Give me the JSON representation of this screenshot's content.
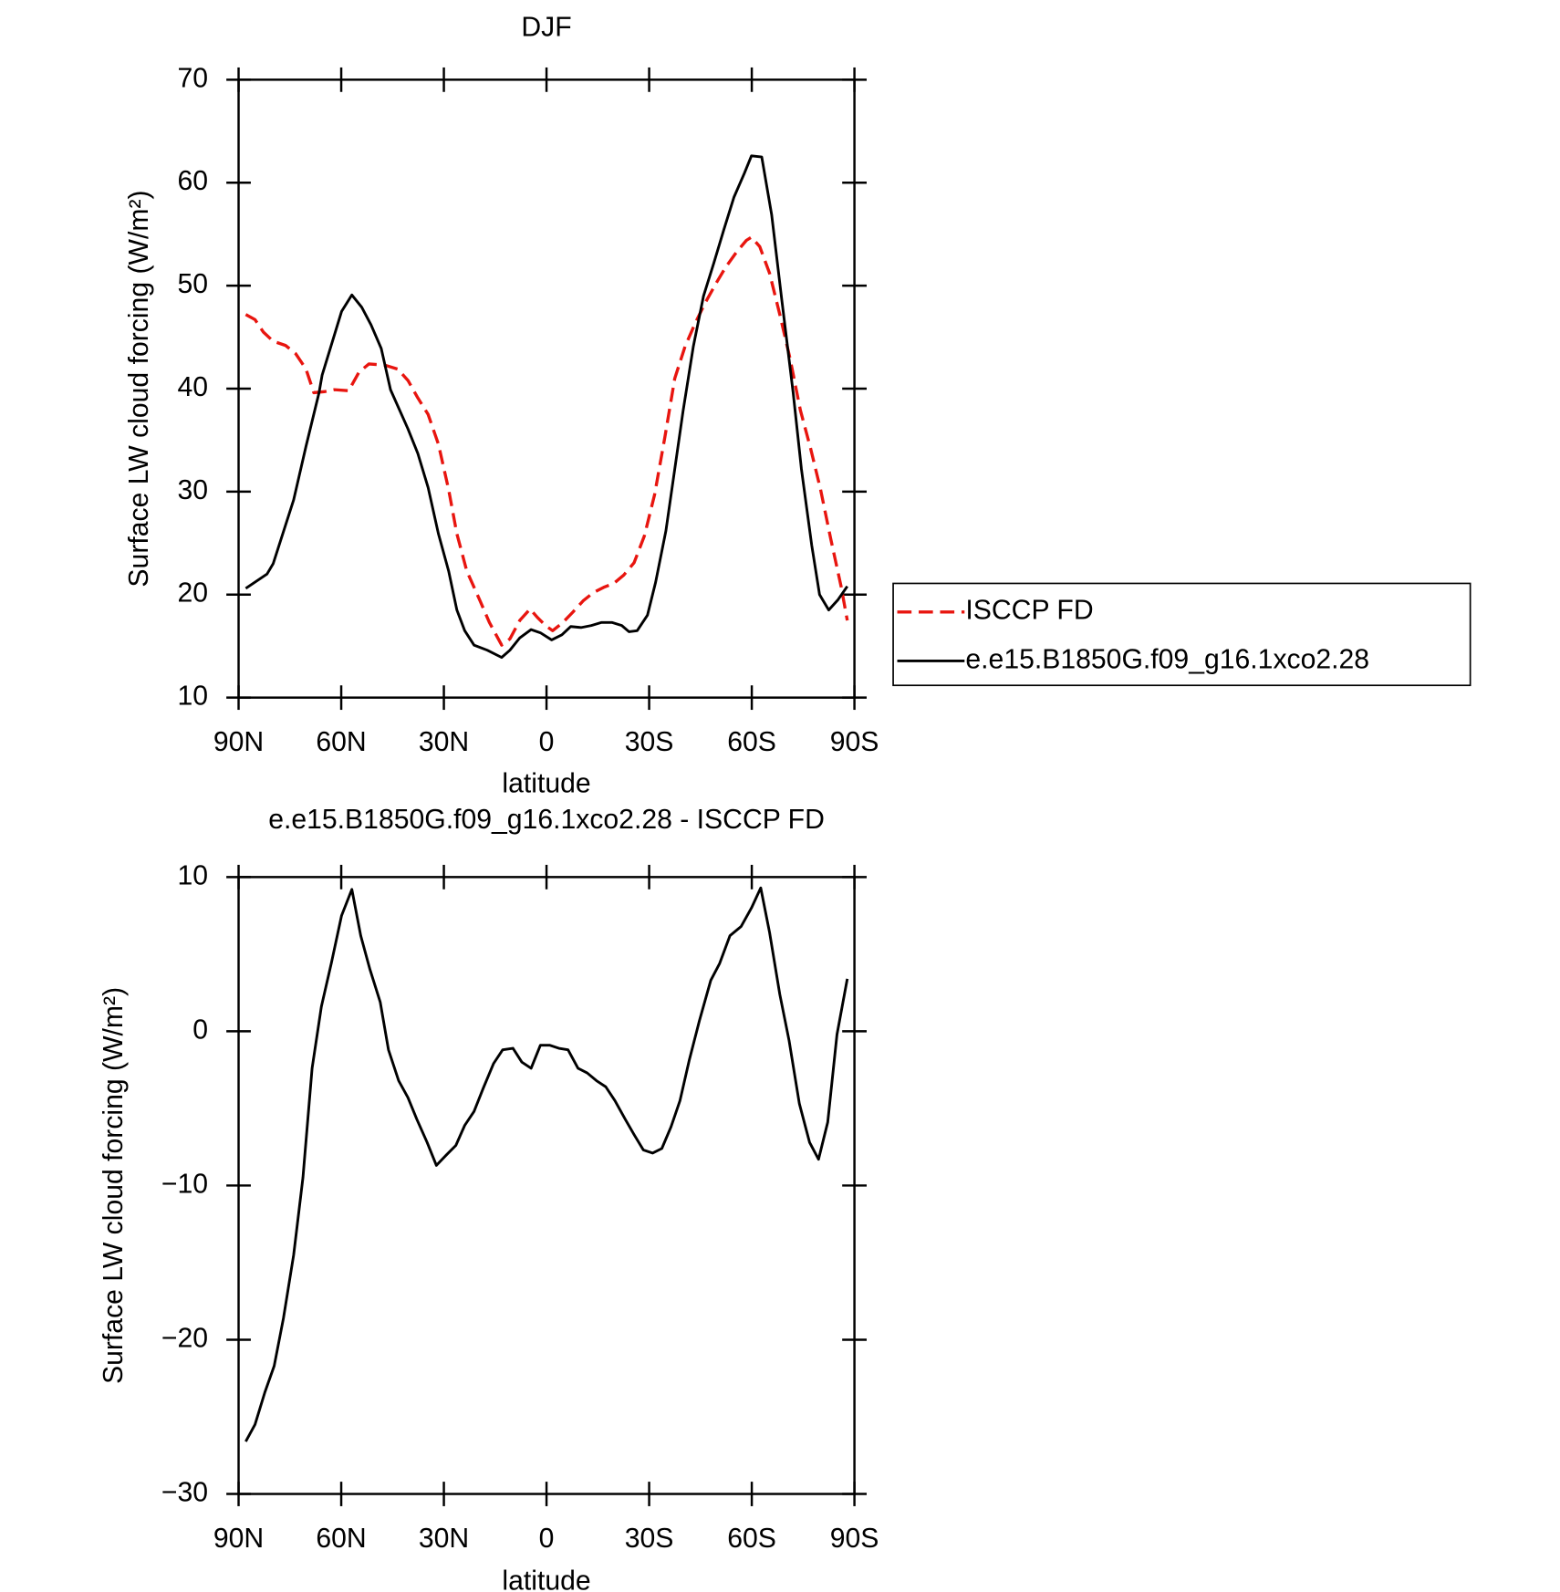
{
  "chart_data": [
    {
      "type": "line",
      "title": "DJF",
      "xlabel": "latitude",
      "ylabel": "Surface LW cloud forcing (W/m²)",
      "xlim": [
        90,
        -90
      ],
      "xticks": [
        {
          "value": 90,
          "label": "90N"
        },
        {
          "value": 60,
          "label": "60N"
        },
        {
          "value": 30,
          "label": "30N"
        },
        0,
        {
          "value": -30,
          "label": "30S"
        },
        {
          "value": -60,
          "label": "60S"
        },
        {
          "value": -90,
          "label": "90S"
        }
      ],
      "ylim": [
        10,
        70
      ],
      "yticks": [
        10,
        20,
        30,
        40,
        50,
        60,
        70
      ],
      "legend": "right",
      "series": [
        {
          "name": "ISCCP FD",
          "color": "#e8150f",
          "style": "dashed",
          "x": [
            87.9,
            85.2,
            82.8,
            79.9,
            76.3,
            73.3,
            70.3,
            68.0,
            65.0,
            62.0,
            57.8,
            54.8,
            51.9,
            47.4,
            43.5,
            40.5,
            37.6,
            34.6,
            31.6,
            28.6,
            26.2,
            23.3,
            19.7,
            16.7,
            13.1,
            10.7,
            7.8,
            4.8,
            2.7,
            0.3,
            -1.8,
            -4.8,
            -7.7,
            -10.7,
            -13.7,
            -16.7,
            -19.7,
            -22.6,
            -25.6,
            -28.6,
            -31.6,
            -34.6,
            -37.5,
            -40.5,
            -43.5,
            -46.5,
            -49.5,
            -52.4,
            -55.4,
            -58.4,
            -59.9,
            -62.3,
            -65.2,
            -68.2,
            -71.2,
            -74.2,
            -77.2,
            -80.1,
            -83.1,
            -86.1,
            -87.9
          ],
          "values": [
            47.2,
            46.7,
            45.5,
            44.6,
            44.2,
            43.4,
            41.9,
            39.6,
            39.7,
            39.9,
            39.8,
            41.6,
            42.4,
            42.3,
            41.9,
            40.8,
            39.1,
            37.5,
            34.6,
            30.2,
            25.9,
            22.3,
            19.6,
            17.3,
            15.1,
            15.7,
            17.5,
            18.6,
            17.8,
            17.0,
            16.5,
            17.3,
            18.3,
            19.4,
            20.2,
            20.7,
            21.1,
            21.9,
            23.1,
            25.7,
            29.7,
            35.3,
            41.0,
            44.1,
            46.4,
            48.4,
            50.2,
            51.8,
            53.2,
            54.4,
            54.7,
            53.8,
            51.2,
            47.2,
            42.9,
            37.9,
            34.2,
            30.2,
            25.4,
            20.8,
            17.5
          ]
        },
        {
          "name": "e.e15.B1850G.f09_g16.1xco2.28",
          "color": "#000000",
          "style": "solid",
          "x": [
            87.9,
            81.7,
            79.9,
            73.9,
            70.3,
            66.5,
            65.6,
            59.9,
            56.9,
            54.0,
            51.3,
            48.3,
            45.6,
            40.5,
            37.6,
            34.6,
            31.6,
            28.6,
            26.2,
            23.9,
            21.2,
            17.3,
            13.1,
            10.7,
            7.8,
            4.5,
            1.8,
            -1.5,
            -4.5,
            -7.1,
            -10.1,
            -13.1,
            -16.1,
            -19.1,
            -22.0,
            -24.1,
            -26.5,
            -29.5,
            -31.9,
            -34.9,
            -37.5,
            -39.9,
            -42.9,
            -45.9,
            -48.9,
            -51.8,
            -54.8,
            -57.8,
            -59.9,
            -62.9,
            -65.8,
            -68.8,
            -72.1,
            -74.5,
            -77.5,
            -79.8,
            -82.5,
            -85.2,
            -87.9
          ],
          "values": [
            20.6,
            22.0,
            23.0,
            29.2,
            34.4,
            39.6,
            41.3,
            47.5,
            49.1,
            47.9,
            46.2,
            43.9,
            39.9,
            36.1,
            33.7,
            30.4,
            25.9,
            22.3,
            18.5,
            16.5,
            15.1,
            14.6,
            13.9,
            14.6,
            15.8,
            16.6,
            16.3,
            15.6,
            16.1,
            16.9,
            16.8,
            17.0,
            17.3,
            17.3,
            17.0,
            16.4,
            16.5,
            18.0,
            21.2,
            26.2,
            32.2,
            37.8,
            44.1,
            49.0,
            52.2,
            55.4,
            58.6,
            60.9,
            62.6,
            62.5,
            56.9,
            48.5,
            39.6,
            32.2,
            24.8,
            20.0,
            18.5,
            19.5,
            20.8
          ]
        }
      ]
    },
    {
      "type": "line",
      "title": "e.e15.B1850G.f09_g16.1xco2.28 - ISCCP FD",
      "xlabel": "latitude",
      "ylabel": "Surface LW cloud forcing (W/m²)",
      "xlim": [
        90,
        -90
      ],
      "xticks": [
        {
          "value": 90,
          "label": "90N"
        },
        {
          "value": 60,
          "label": "60N"
        },
        {
          "value": 30,
          "label": "30N"
        },
        0,
        {
          "value": -30,
          "label": "30S"
        },
        {
          "value": -60,
          "label": "60S"
        },
        {
          "value": -90,
          "label": "90S"
        }
      ],
      "ylim": [
        -30,
        10
      ],
      "yticks": [
        {
          "value": -30,
          "label": "−30"
        },
        {
          "value": -20,
          "label": "−20"
        },
        {
          "value": -10,
          "label": "−10"
        },
        0,
        10
      ],
      "series": [
        {
          "color": "#000000",
          "style": "solid",
          "x": [
            87.9,
            85.2,
            82.3,
            79.6,
            76.9,
            73.9,
            71.2,
            68.5,
            65.8,
            62.9,
            59.9,
            56.9,
            54.3,
            51.6,
            48.6,
            46.2,
            43.2,
            40.5,
            37.9,
            34.9,
            32.2,
            29.2,
            26.5,
            23.9,
            21.2,
            18.5,
            15.5,
            12.8,
            9.8,
            7.2,
            4.5,
            1.8,
            -0.9,
            -3.6,
            -6.3,
            -9.2,
            -11.9,
            -14.6,
            -17.3,
            -20.0,
            -23.0,
            -25.6,
            -28.3,
            -31.0,
            -33.7,
            -36.4,
            -39.0,
            -41.7,
            -44.7,
            -48.0,
            -50.6,
            -53.6,
            -56.9,
            -59.9,
            -62.6,
            -65.2,
            -68.2,
            -70.9,
            -73.9,
            -76.9,
            -79.5,
            -82.2,
            -84.9,
            -87.9
          ],
          "values": [
            -26.6,
            -25.5,
            -23.4,
            -21.7,
            -18.6,
            -14.5,
            -9.5,
            -2.4,
            1.6,
            4.4,
            7.5,
            9.2,
            6.2,
            4.0,
            1.9,
            -1.2,
            -3.2,
            -4.3,
            -5.7,
            -7.2,
            -8.7,
            -8.0,
            -7.4,
            -6.1,
            -5.2,
            -3.7,
            -2.1,
            -1.2,
            -1.1,
            -2.0,
            -2.4,
            -0.9,
            -0.9,
            -1.1,
            -1.2,
            -2.4,
            -2.7,
            -3.2,
            -3.6,
            -4.5,
            -5.7,
            -6.7,
            -7.7,
            -7.9,
            -7.6,
            -6.2,
            -4.5,
            -1.9,
            0.7,
            3.3,
            4.4,
            6.2,
            6.8,
            8.0,
            9.3,
            6.4,
            2.4,
            -0.6,
            -4.7,
            -7.2,
            -8.3,
            -5.9,
            -0.2,
            3.4
          ]
        }
      ]
    }
  ]
}
